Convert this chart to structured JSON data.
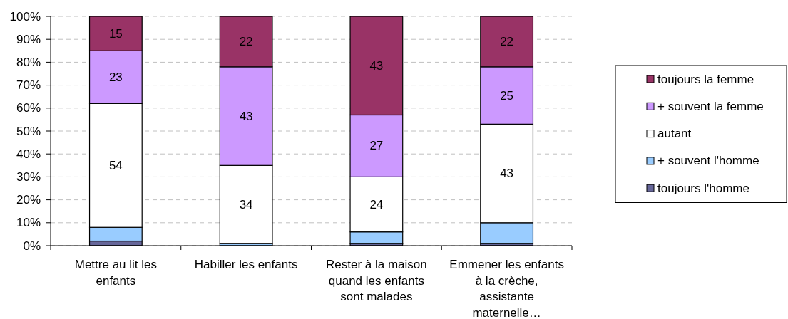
{
  "chart_data": {
    "type": "bar",
    "stacked": true,
    "categories": [
      "Mettre au lit les enfants",
      "Habiller les enfants",
      "Rester à la maison quand les enfants sont malades",
      "Emmener les enfants à la crèche, assistante maternelle…"
    ],
    "series": [
      {
        "name": "toujours l'homme",
        "color": "#666699",
        "values": [
          2,
          0,
          1,
          1
        ]
      },
      {
        "name": "+ souvent l'homme",
        "color": "#99ccff",
        "values": [
          6,
          1,
          5,
          9
        ]
      },
      {
        "name": "autant",
        "color": "#ffffff",
        "values": [
          54,
          34,
          24,
          43
        ],
        "value_labels": [
          "54",
          "34",
          "24",
          "43"
        ]
      },
      {
        "name": "+ souvent la femme",
        "color": "#cc99ff",
        "values": [
          23,
          43,
          27,
          25
        ],
        "value_labels": [
          "23",
          "43",
          "27",
          "25"
        ]
      },
      {
        "name": "toujours la femme",
        "color": "#993366",
        "values": [
          15,
          22,
          43,
          22
        ],
        "value_labels": [
          "15",
          "22",
          "43",
          "22"
        ]
      }
    ],
    "ylim": [
      0,
      100
    ],
    "yticks": [
      {
        "value": 0,
        "label": "0%"
      },
      {
        "value": 10,
        "label": "10%"
      },
      {
        "value": 20,
        "label": "20%"
      },
      {
        "value": 30,
        "label": "30%"
      },
      {
        "value": 40,
        "label": "40%"
      },
      {
        "value": 50,
        "label": "50%"
      },
      {
        "value": 60,
        "label": "60%"
      },
      {
        "value": 70,
        "label": "70%"
      },
      {
        "value": 80,
        "label": "80%"
      },
      {
        "value": 90,
        "label": "90%"
      },
      {
        "value": 100,
        "label": "100%"
      }
    ],
    "grid": "y",
    "legend": "right"
  }
}
